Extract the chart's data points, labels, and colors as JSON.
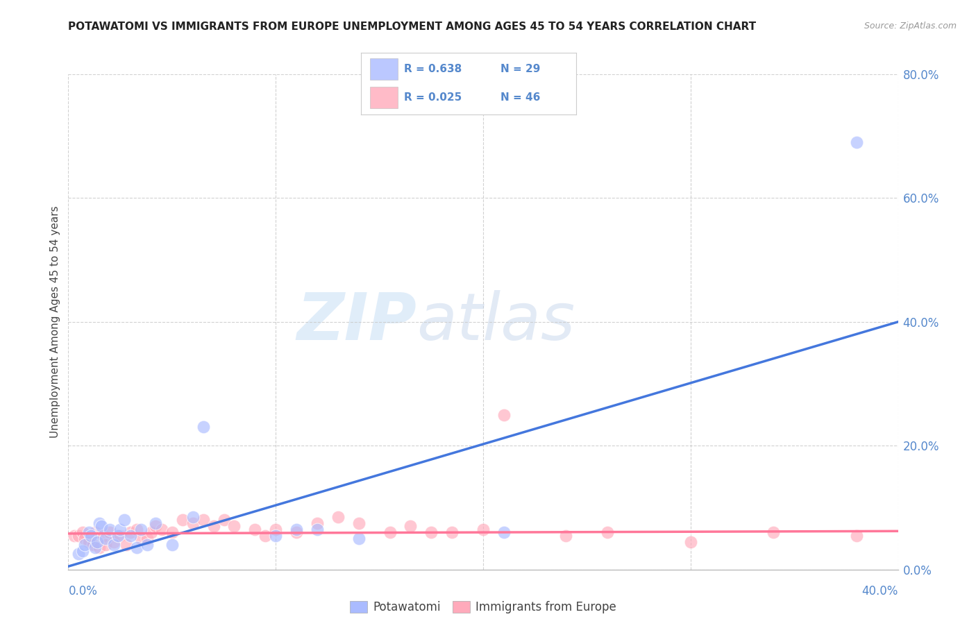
{
  "title": "POTAWATOMI VS IMMIGRANTS FROM EUROPE UNEMPLOYMENT AMONG AGES 45 TO 54 YEARS CORRELATION CHART",
  "source": "Source: ZipAtlas.com",
  "ylabel": "Unemployment Among Ages 45 to 54 years",
  "xlim": [
    0.0,
    0.4
  ],
  "ylim": [
    0.0,
    0.8
  ],
  "yticks": [
    0.0,
    0.2,
    0.4,
    0.6,
    0.8
  ],
  "ytick_labels": [
    "0.0%",
    "20.0%",
    "40.0%",
    "60.0%",
    "80.0%"
  ],
  "xtick_labels_ends": [
    "0.0%",
    "40.0%"
  ],
  "background_color": "#ffffff",
  "grid_color": "#cccccc",
  "watermark_zip": "ZIP",
  "watermark_atlas": "atlas",
  "blue_color": "#aabbff",
  "pink_color": "#ffaabb",
  "blue_line_color": "#4477dd",
  "pink_line_color": "#ff7799",
  "potawatomi_x": [
    0.005,
    0.007,
    0.008,
    0.01,
    0.011,
    0.013,
    0.014,
    0.015,
    0.016,
    0.018,
    0.02,
    0.022,
    0.024,
    0.025,
    0.027,
    0.03,
    0.033,
    0.035,
    0.038,
    0.042,
    0.05,
    0.06,
    0.065,
    0.1,
    0.11,
    0.12,
    0.14,
    0.21,
    0.38
  ],
  "potawatomi_y": [
    0.025,
    0.03,
    0.04,
    0.06,
    0.055,
    0.035,
    0.045,
    0.075,
    0.07,
    0.05,
    0.065,
    0.04,
    0.055,
    0.065,
    0.08,
    0.055,
    0.035,
    0.065,
    0.04,
    0.075,
    0.04,
    0.085,
    0.23,
    0.055,
    0.065,
    0.065,
    0.05,
    0.06,
    0.69
  ],
  "europe_x": [
    0.003,
    0.005,
    0.007,
    0.008,
    0.01,
    0.012,
    0.013,
    0.015,
    0.017,
    0.018,
    0.02,
    0.022,
    0.025,
    0.028,
    0.03,
    0.033,
    0.035,
    0.038,
    0.04,
    0.042,
    0.045,
    0.05,
    0.055,
    0.06,
    0.065,
    0.07,
    0.075,
    0.08,
    0.09,
    0.095,
    0.1,
    0.11,
    0.12,
    0.13,
    0.14,
    0.155,
    0.165,
    0.175,
    0.185,
    0.2,
    0.21,
    0.24,
    0.26,
    0.3,
    0.34,
    0.38
  ],
  "europe_y": [
    0.055,
    0.055,
    0.06,
    0.05,
    0.045,
    0.04,
    0.06,
    0.035,
    0.055,
    0.04,
    0.06,
    0.045,
    0.055,
    0.04,
    0.06,
    0.065,
    0.05,
    0.05,
    0.06,
    0.07,
    0.065,
    0.06,
    0.08,
    0.075,
    0.08,
    0.07,
    0.08,
    0.07,
    0.065,
    0.055,
    0.065,
    0.06,
    0.075,
    0.085,
    0.075,
    0.06,
    0.07,
    0.06,
    0.06,
    0.065,
    0.25,
    0.055,
    0.06,
    0.045,
    0.06,
    0.055
  ],
  "blue_trendline_x": [
    0.0,
    0.4
  ],
  "blue_trendline_y": [
    0.005,
    0.4
  ],
  "pink_trendline_x": [
    0.0,
    0.4
  ],
  "pink_trendline_y": [
    0.058,
    0.062
  ]
}
